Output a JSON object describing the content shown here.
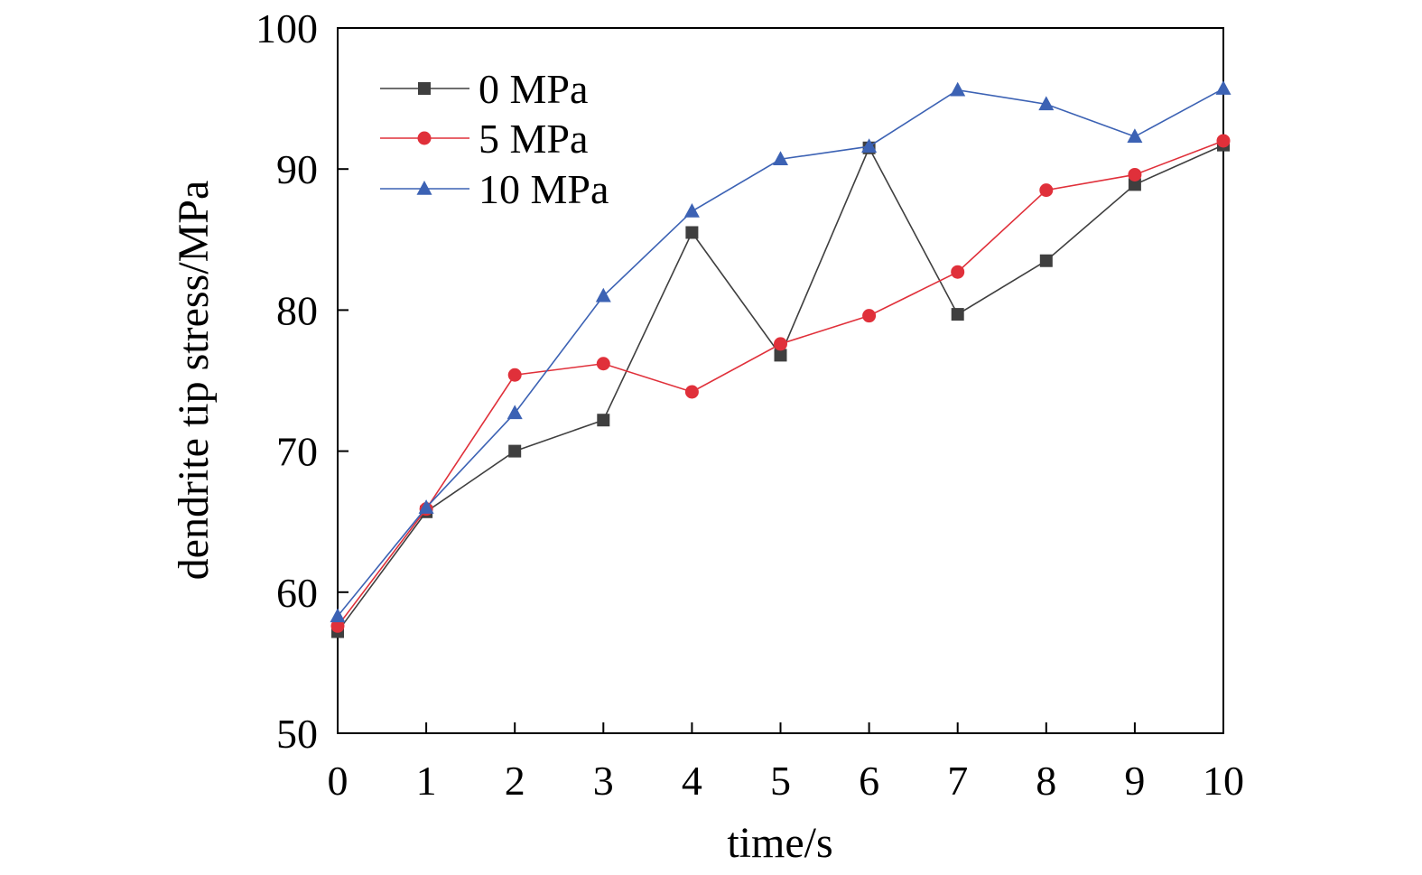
{
  "chart_data": {
    "type": "line",
    "title": "",
    "xlabel": "time/s",
    "ylabel": "dendrite tip stress/MPa",
    "xlim": [
      0,
      10
    ],
    "ylim": [
      50,
      100
    ],
    "xticks": [
      0,
      1,
      2,
      3,
      4,
      5,
      6,
      7,
      8,
      9,
      10
    ],
    "yticks": [
      50,
      60,
      70,
      80,
      90,
      100
    ],
    "grid": false,
    "legend": {
      "position": "top-left"
    },
    "x": [
      0,
      1,
      2,
      3,
      4,
      5,
      6,
      7,
      8,
      9,
      10
    ],
    "series": [
      {
        "name": "0 MPa",
        "marker": "square",
        "color": "#3f3f3f",
        "values": [
          57.2,
          65.7,
          70.0,
          72.2,
          85.5,
          76.8,
          91.5,
          79.7,
          83.5,
          88.9,
          91.7
        ]
      },
      {
        "name": "5 MPa",
        "marker": "circle",
        "color": "#e0303a",
        "values": [
          57.6,
          65.9,
          75.4,
          76.2,
          74.2,
          77.6,
          79.6,
          82.7,
          88.5,
          89.6,
          92.0
        ]
      },
      {
        "name": "10 MPa",
        "marker": "triangle",
        "color": "#3c62b4",
        "values": [
          58.3,
          66.0,
          72.7,
          81.0,
          87.0,
          90.7,
          91.6,
          95.6,
          94.6,
          92.3,
          95.7
        ]
      }
    ]
  }
}
